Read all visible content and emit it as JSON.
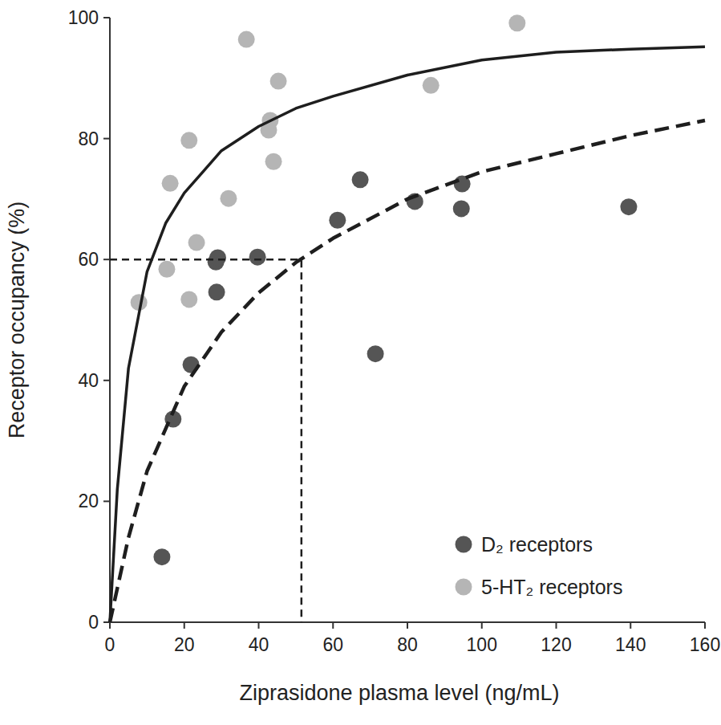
{
  "chart_data": {
    "type": "scatter",
    "x_label": "Ziprasidone plasma level (ng/mL)",
    "y_label": "Receptor occupancy (%)",
    "xlim": [
      0,
      160
    ],
    "ylim": [
      0,
      100
    ],
    "xticks": [
      0,
      20,
      40,
      60,
      80,
      100,
      120,
      140,
      160
    ],
    "yticks": [
      0,
      20,
      40,
      60,
      80,
      100
    ],
    "grid": false,
    "legend": "bottom-right",
    "series": [
      {
        "name": "D₂ receptors",
        "type": "scatter",
        "marker": "circle",
        "color": "#555555",
        "x": [
          14,
          17,
          21.8,
          28.5,
          29,
          28.7,
          39.7,
          61.2,
          67.3,
          71.4,
          82,
          94.7,
          94.5,
          139.5
        ],
        "values": [
          10.8,
          33.6,
          42.6,
          59.6,
          60.3,
          54.6,
          60.4,
          66.5,
          73.2,
          44.4,
          69.6,
          72.5,
          68.4,
          68.7
        ]
      },
      {
        "name": "5-HT₂ receptors",
        "type": "scatter",
        "marker": "circle",
        "color": "#b5b5b5",
        "x": [
          7.8,
          15.3,
          16.2,
          21.3,
          21.3,
          23.3,
          31.9,
          36.7,
          42.7,
          43.1,
          44,
          45.3,
          86.3,
          109.5
        ],
        "values": [
          52.9,
          58.4,
          72.6,
          79.7,
          53.4,
          62.8,
          70.1,
          96.4,
          81.4,
          83,
          76.2,
          89.5,
          88.8,
          99.1
        ]
      },
      {
        "type": "line",
        "line_style": "solid",
        "color": "#1e1e1e",
        "x": [
          0,
          2,
          5,
          10,
          15,
          20,
          30,
          40,
          50,
          60,
          80,
          100,
          120,
          140,
          160
        ],
        "values": [
          0,
          22,
          42,
          58,
          66,
          71,
          78,
          82,
          85,
          87,
          90.5,
          93,
          94.3,
          94.8,
          95.2
        ]
      },
      {
        "type": "line",
        "line_style": "dashed",
        "color": "#1e1e1e",
        "x": [
          0,
          5,
          10,
          20,
          30,
          40,
          50,
          60,
          80,
          100,
          120,
          140,
          160
        ],
        "values": [
          0,
          14,
          25,
          39,
          48,
          54.5,
          59.5,
          63.5,
          70,
          74.5,
          77.5,
          80.5,
          83
        ]
      },
      {
        "type": "line",
        "line_style": "dotted",
        "color": "#1e1e1e",
        "x": [
          0,
          51.5,
          51.5
        ],
        "values": [
          60,
          60,
          0
        ]
      }
    ]
  }
}
